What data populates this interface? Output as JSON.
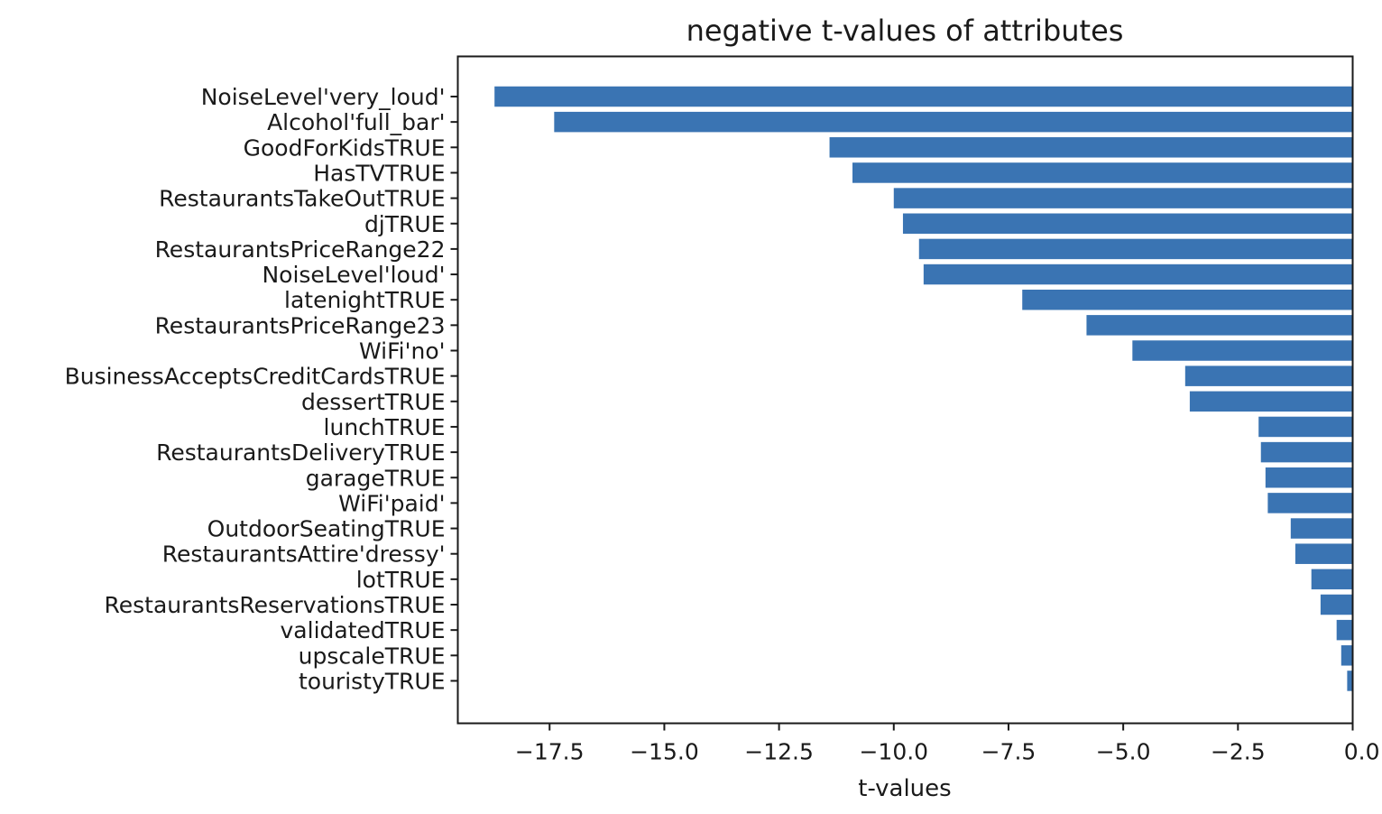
{
  "chart_data": {
    "type": "bar",
    "orientation": "horizontal",
    "title": "negative t-values of attributes",
    "xlabel": "t-values",
    "ylabel": "",
    "xlim": [
      -19.5,
      0.0
    ],
    "xticks": [
      "−17.5",
      "−15.0",
      "−12.5",
      "−10.0",
      "−7.5",
      "−5.0",
      "−2.5",
      "0.0"
    ],
    "xtick_values": [
      -17.5,
      -15.0,
      -12.5,
      -10.0,
      -7.5,
      -5.0,
      -2.5,
      0.0
    ],
    "bar_color": "#3a74b3",
    "grid": false,
    "categories": [
      "NoiseLevel'very_loud'",
      "Alcohol'full_bar'",
      "GoodForKidsTRUE",
      "HasTVTRUE",
      "RestaurantsTakeOutTRUE",
      "djTRUE",
      "RestaurantsPriceRange22",
      "NoiseLevel'loud'",
      "latenightTRUE",
      "RestaurantsPriceRange23",
      "WiFi'no'",
      "BusinessAcceptsCreditCardsTRUE",
      "dessertTRUE",
      "lunchTRUE",
      "RestaurantsDeliveryTRUE",
      "garageTRUE",
      "WiFi'paid'",
      "OutdoorSeatingTRUE",
      "RestaurantsAttire'dressy'",
      "lotTRUE",
      "RestaurantsReservationsTRUE",
      "validatedTRUE",
      "upscaleTRUE",
      "touristyTRUE"
    ],
    "values": [
      -18.7,
      -17.4,
      -11.4,
      -10.9,
      -10.0,
      -9.8,
      -9.45,
      -9.35,
      -7.2,
      -5.8,
      -4.8,
      -3.65,
      -3.55,
      -2.05,
      -2.0,
      -1.9,
      -1.85,
      -1.35,
      -1.25,
      -0.9,
      -0.7,
      -0.35,
      -0.25,
      -0.12
    ]
  }
}
